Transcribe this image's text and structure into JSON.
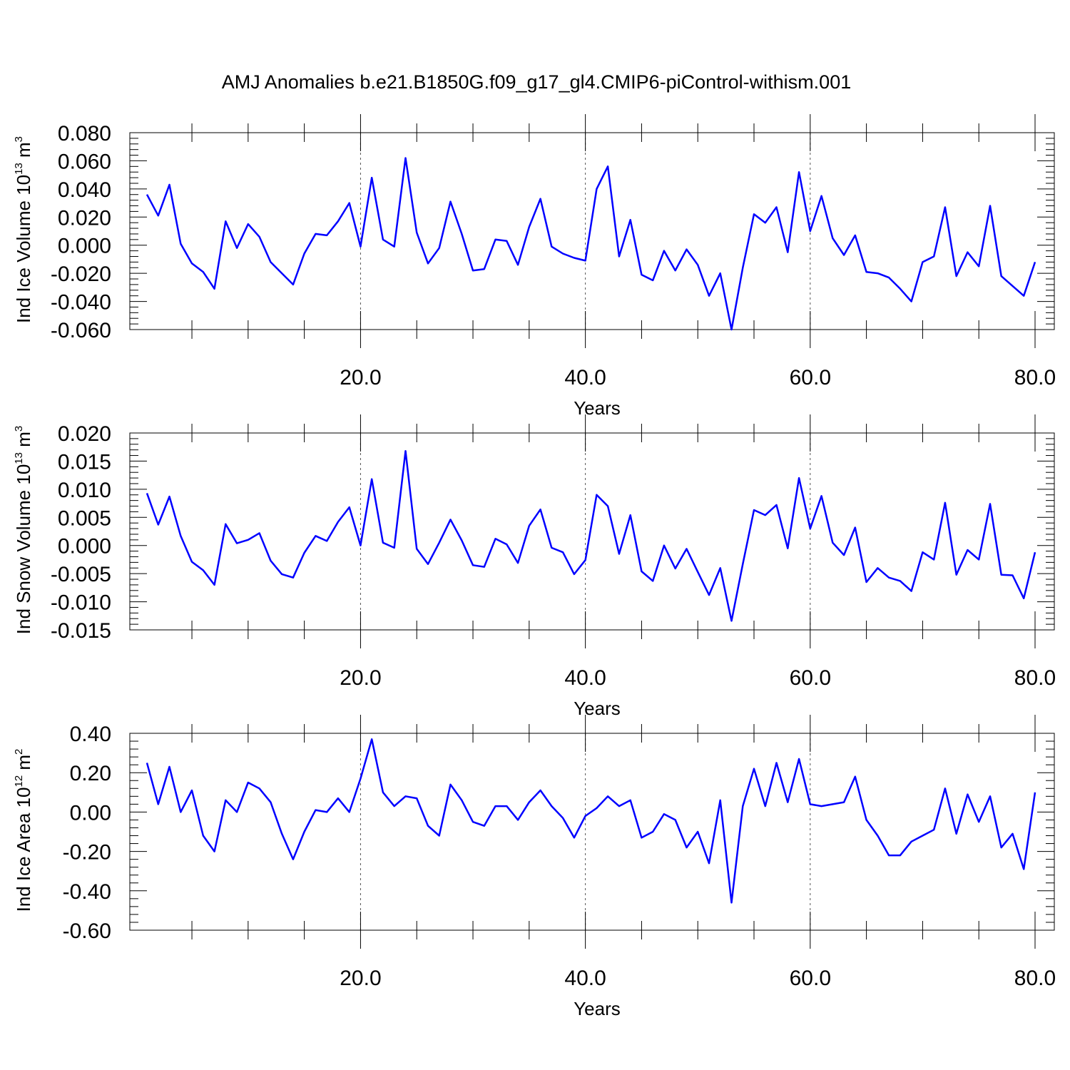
{
  "title": "AMJ Anomalies b.e21.B1850G.f09_g17_gl4.CMIP6-piControl-withism.001",
  "line_color": "#0000ff",
  "chart_data": [
    {
      "type": "line",
      "ylabel_main": "Ind Ice Volume 10",
      "ylabel_exp": "13",
      "ylabel_unit": "m",
      "ylabel_unit_exp": "3",
      "xlabel": "Years",
      "xlim": [
        1,
        80
      ],
      "ylim": [
        -0.06,
        0.08
      ],
      "xticks": [
        "20.0",
        "40.0",
        "60.0",
        "80.0"
      ],
      "yticks": [
        "0.080",
        "0.060",
        "0.040",
        "0.020",
        "0.000",
        "-0.020",
        "-0.040",
        "-0.060"
      ],
      "x": [
        1,
        2,
        3,
        4,
        5,
        6,
        7,
        8,
        9,
        10,
        11,
        12,
        13,
        14,
        15,
        16,
        17,
        18,
        19,
        20,
        21,
        22,
        23,
        24,
        25,
        26,
        27,
        28,
        29,
        30,
        31,
        32,
        33,
        34,
        35,
        36,
        37,
        38,
        39,
        40,
        41,
        42,
        43,
        44,
        45,
        46,
        47,
        48,
        49,
        50,
        51,
        52,
        53,
        54,
        55,
        56,
        57,
        58,
        59,
        60,
        61,
        62,
        63,
        64,
        65,
        66,
        67,
        68,
        69,
        70,
        71,
        72,
        73,
        74,
        75,
        76,
        77,
        78,
        79,
        80
      ],
      "values": [
        0.036,
        0.021,
        0.043,
        0.001,
        -0.013,
        -0.019,
        -0.031,
        0.017,
        -0.002,
        0.015,
        0.006,
        -0.012,
        -0.02,
        -0.028,
        -0.006,
        0.008,
        0.007,
        0.017,
        0.03,
        -0.001,
        0.048,
        0.004,
        -0.001,
        0.062,
        0.009,
        -0.013,
        -0.002,
        0.031,
        0.008,
        -0.018,
        -0.017,
        0.004,
        0.003,
        -0.014,
        0.013,
        0.033,
        -0.001,
        -0.006,
        -0.009,
        -0.011,
        0.04,
        0.056,
        -0.008,
        0.018,
        -0.021,
        -0.025,
        -0.004,
        -0.018,
        -0.003,
        -0.014,
        -0.036,
        -0.02,
        -0.06,
        -0.016,
        0.022,
        0.016,
        0.027,
        -0.005,
        0.052,
        0.01,
        0.035,
        0.005,
        -0.007,
        0.007,
        -0.019,
        -0.02,
        -0.023,
        -0.031,
        -0.04,
        -0.012,
        -0.008,
        0.027,
        -0.022,
        -0.005,
        -0.015,
        0.028,
        -0.022,
        -0.029,
        -0.036,
        -0.012
      ]
    },
    {
      "type": "line",
      "ylabel_main": "Ind Snow Volume 10",
      "ylabel_exp": "13",
      "ylabel_unit": "m",
      "ylabel_unit_exp": "3",
      "xlabel": "Years",
      "xlim": [
        1,
        80
      ],
      "ylim": [
        -0.015,
        0.02
      ],
      "xticks": [
        "20.0",
        "40.0",
        "60.0",
        "80.0"
      ],
      "yticks": [
        "0.020",
        "0.015",
        "0.010",
        "0.005",
        "0.000",
        "-0.005",
        "-0.010",
        "-0.015"
      ],
      "x": [
        1,
        2,
        3,
        4,
        5,
        6,
        7,
        8,
        9,
        10,
        11,
        12,
        13,
        14,
        15,
        16,
        17,
        18,
        19,
        20,
        21,
        22,
        23,
        24,
        25,
        26,
        27,
        28,
        29,
        30,
        31,
        32,
        33,
        34,
        35,
        36,
        37,
        38,
        39,
        40,
        41,
        42,
        43,
        44,
        45,
        46,
        47,
        48,
        49,
        50,
        51,
        52,
        53,
        54,
        55,
        56,
        57,
        58,
        59,
        60,
        61,
        62,
        63,
        64,
        65,
        66,
        67,
        68,
        69,
        70,
        71,
        72,
        73,
        74,
        75,
        76,
        77,
        78,
        79,
        80
      ],
      "values": [
        0.0093,
        0.0037,
        0.0087,
        0.0017,
        -0.0029,
        -0.0044,
        -0.007,
        0.0038,
        0.0004,
        0.001,
        0.0022,
        -0.0027,
        -0.0051,
        -0.0057,
        -0.0013,
        0.0017,
        0.0008,
        0.0042,
        0.0068,
        0.0,
        0.0118,
        0.0005,
        -0.0004,
        0.0168,
        -0.0006,
        -0.0033,
        0.0005,
        0.0046,
        0.0009,
        -0.0035,
        -0.0038,
        0.0012,
        0.0002,
        -0.0031,
        0.0035,
        0.0064,
        -0.0004,
        -0.0012,
        -0.0051,
        -0.0026,
        0.009,
        0.007,
        -0.0015,
        0.0054,
        -0.0046,
        -0.0063,
        0.0,
        -0.0041,
        -0.0006,
        -0.0047,
        -0.0088,
        -0.004,
        -0.0134,
        -0.0033,
        0.0063,
        0.0054,
        0.0072,
        -0.0005,
        0.012,
        0.003,
        0.0088,
        0.0005,
        -0.0017,
        0.0032,
        -0.0065,
        -0.004,
        -0.0057,
        -0.0063,
        -0.0081,
        -0.0012,
        -0.0025,
        0.0076,
        -0.0052,
        -0.0008,
        -0.0025,
        0.0074,
        -0.0052,
        -0.0053,
        -0.0094,
        -0.0012
      ]
    },
    {
      "type": "line",
      "ylabel_main": "Ind Ice Area 10",
      "ylabel_exp": "12",
      "ylabel_unit": "m",
      "ylabel_unit_exp": "2",
      "xlabel": "Years",
      "xlim": [
        1,
        80
      ],
      "ylim": [
        -0.6,
        0.4
      ],
      "xticks": [
        "20.0",
        "40.0",
        "60.0",
        "80.0"
      ],
      "yticks": [
        "0.40",
        "0.20",
        "0.00",
        "-0.20",
        "-0.40",
        "-0.60"
      ],
      "x": [
        1,
        2,
        3,
        4,
        5,
        6,
        7,
        8,
        9,
        10,
        11,
        12,
        13,
        14,
        15,
        16,
        17,
        18,
        19,
        20,
        21,
        22,
        23,
        24,
        25,
        26,
        27,
        28,
        29,
        30,
        31,
        32,
        33,
        34,
        35,
        36,
        37,
        38,
        39,
        40,
        41,
        42,
        43,
        44,
        45,
        46,
        47,
        48,
        49,
        50,
        51,
        52,
        53,
        54,
        55,
        56,
        57,
        58,
        59,
        60,
        61,
        62,
        63,
        64,
        65,
        66,
        67,
        68,
        69,
        70,
        71,
        72,
        73,
        74,
        75,
        76,
        77,
        78,
        79,
        80
      ],
      "values": [
        0.25,
        0.04,
        0.23,
        0.0,
        0.11,
        -0.12,
        -0.2,
        0.06,
        0.0,
        0.15,
        0.12,
        0.05,
        -0.11,
        -0.24,
        -0.1,
        0.01,
        0.0,
        0.07,
        0.0,
        0.17,
        0.37,
        0.1,
        0.03,
        0.08,
        0.07,
        -0.07,
        -0.12,
        0.14,
        0.06,
        -0.05,
        -0.07,
        0.03,
        0.03,
        -0.04,
        0.05,
        0.11,
        0.03,
        -0.03,
        -0.13,
        -0.02,
        0.02,
        0.08,
        0.03,
        0.06,
        -0.13,
        -0.1,
        -0.01,
        -0.04,
        -0.18,
        -0.1,
        -0.26,
        0.06,
        -0.46,
        0.03,
        0.22,
        0.03,
        0.25,
        0.05,
        0.27,
        0.04,
        0.03,
        0.04,
        0.05,
        0.18,
        -0.04,
        -0.12,
        -0.22,
        -0.22,
        -0.15,
        -0.12,
        -0.09,
        0.12,
        -0.11,
        0.09,
        -0.05,
        0.08,
        -0.18,
        -0.11,
        -0.29,
        0.1
      ]
    }
  ]
}
